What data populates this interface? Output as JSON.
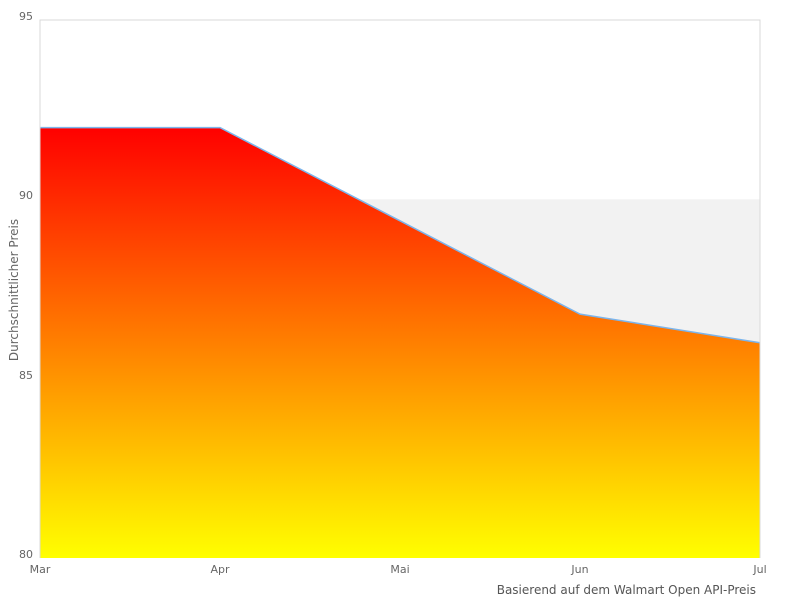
{
  "chart_data": {
    "type": "area",
    "categories": [
      "Mar",
      "Apr",
      "Mai",
      "Jun",
      "Jul"
    ],
    "values": [
      92,
      92,
      89.4,
      86.8,
      86
    ],
    "series_name": "Durchschnittlicher Preis",
    "title": "",
    "xlabel": "",
    "ylabel": "Durchschnittlicher Preis",
    "caption": "Basierend auf dem Walmart Open API-Preis",
    "ylim": [
      80,
      95
    ],
    "yticks": [
      95,
      90,
      85,
      80
    ],
    "grid": false,
    "legend": false,
    "plot_band": {
      "from": 85,
      "to": 90,
      "color": "#f2f2f2"
    },
    "colors": {
      "line": "#7cb5ec",
      "gradient_top": "#ff0000",
      "gradient_bottom": "#ffff00",
      "plot_border": "#d9d9d9",
      "tick_text": "#666666",
      "caption_text": "#555555",
      "background": "#ffffff"
    }
  }
}
